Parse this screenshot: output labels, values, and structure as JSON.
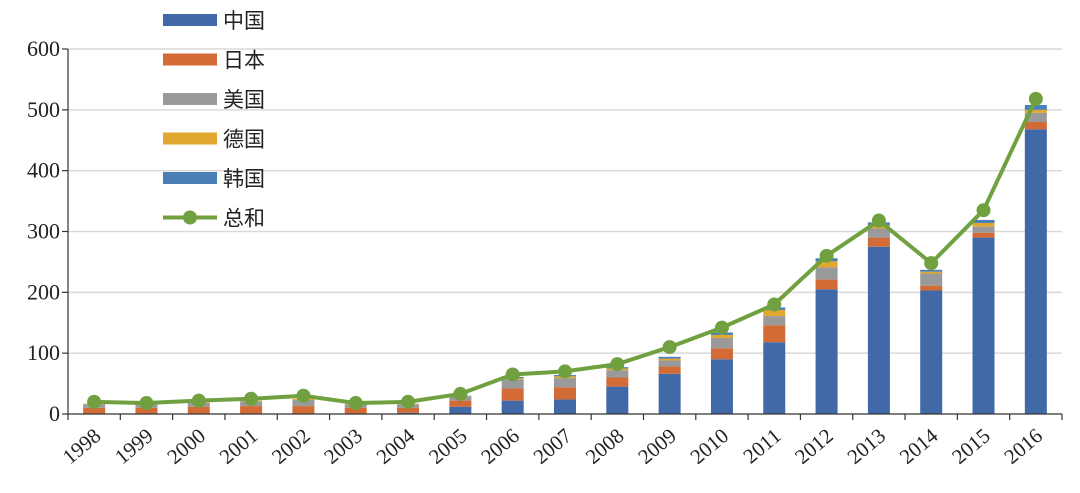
{
  "chart_data": {
    "type": "bar",
    "stacked": true,
    "title": "",
    "xlabel": "",
    "ylabel": "",
    "ylim": [
      0,
      600
    ],
    "yticks": [
      0,
      100,
      200,
      300,
      400,
      500,
      600
    ],
    "grid": true,
    "legend_position": "top-left",
    "categories": [
      "1998",
      "1999",
      "2000",
      "2001",
      "2002",
      "2003",
      "2004",
      "2005",
      "2006",
      "2007",
      "2008",
      "2009",
      "2010",
      "2011",
      "2012",
      "2013",
      "2014",
      "2015",
      "2016"
    ],
    "series": [
      {
        "name": "中国",
        "color": "#4169a8",
        "values": [
          0,
          0,
          0,
          0,
          0,
          0,
          2,
          12,
          22,
          24,
          45,
          66,
          90,
          118,
          205,
          275,
          203,
          290,
          468
        ]
      },
      {
        "name": "日本",
        "color": "#d26b35",
        "values": [
          10,
          10,
          12,
          13,
          13,
          10,
          8,
          10,
          20,
          20,
          15,
          12,
          18,
          28,
          16,
          15,
          8,
          8,
          12
        ]
      },
      {
        "name": "美国",
        "color": "#9a9a9a",
        "values": [
          6,
          6,
          6,
          8,
          10,
          6,
          6,
          6,
          15,
          15,
          12,
          10,
          17,
          15,
          20,
          15,
          20,
          10,
          15
        ]
      },
      {
        "name": "德国",
        "color": "#e0a82e",
        "values": [
          1,
          1,
          1,
          1,
          2,
          1,
          1,
          1,
          2,
          3,
          3,
          3,
          5,
          10,
          10,
          5,
          3,
          6,
          5
        ]
      },
      {
        "name": "韩国",
        "color": "#4a7fb8",
        "values": [
          0,
          0,
          0,
          0,
          0,
          0,
          0,
          1,
          2,
          2,
          2,
          3,
          4,
          4,
          5,
          5,
          3,
          5,
          8
        ]
      }
    ],
    "total": {
      "name": "总和",
      "color": "#70a03f",
      "values": [
        20,
        18,
        22,
        25,
        30,
        18,
        20,
        33,
        65,
        70,
        82,
        110,
        142,
        180,
        260,
        318,
        248,
        335,
        518
      ]
    }
  }
}
